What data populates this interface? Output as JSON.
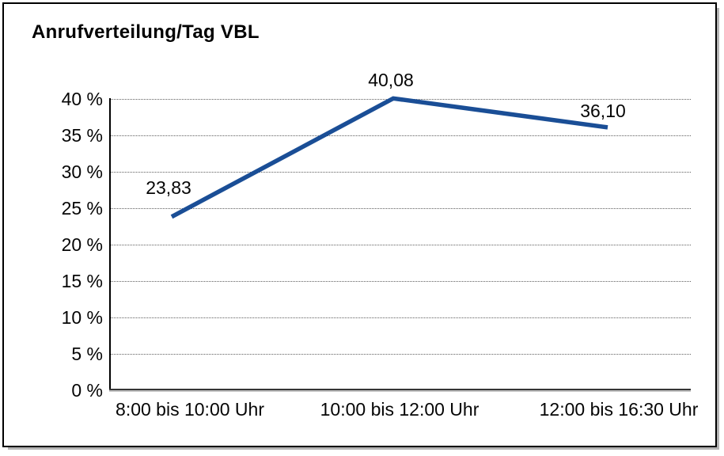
{
  "chart_data": {
    "type": "line",
    "title": "Anrufverteilung/Tag VBL",
    "categories": [
      "8:00 bis 10:00 Uhr",
      "10:00 bis 12:00 Uhr",
      "12:00 bis 16:30 Uhr"
    ],
    "values": [
      23.83,
      40.08,
      36.1
    ],
    "data_labels": [
      "23,83",
      "40,08",
      "36,10"
    ],
    "xlabel": "",
    "ylabel": "",
    "ylim": [
      0,
      40
    ],
    "y_ticks": [
      0,
      5,
      10,
      15,
      20,
      25,
      30,
      35,
      40
    ],
    "y_tick_labels": [
      "0 %",
      "5 %",
      "10 %",
      "15 %",
      "20 %",
      "25 %",
      "30 %",
      "35 %",
      "40 %"
    ],
    "grid": "horizontal dotted",
    "legend": "none",
    "colors": {
      "line": "#1a4e96",
      "text": "#000000",
      "grid": "#5f5f5f",
      "axis": "#000000",
      "frame": "#000000",
      "background": "#ffffff"
    }
  }
}
